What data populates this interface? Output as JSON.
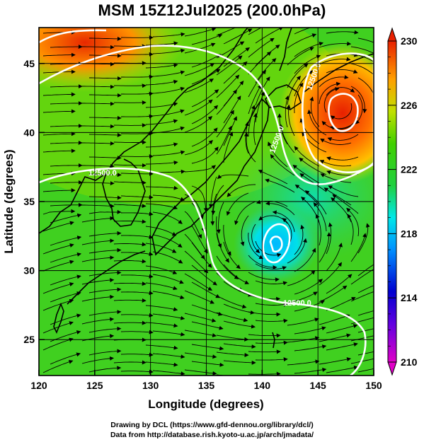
{
  "title": "MSM 15Z12Jul2025 (200.0hPa)",
  "x_axis": {
    "label": "Longitude (degrees)",
    "ticks": [
      120,
      125,
      130,
      135,
      140,
      145,
      150
    ],
    "range": [
      120,
      150
    ]
  },
  "y_axis": {
    "label": "Latitude  (degrees)",
    "ticks": [
      25,
      30,
      35,
      40,
      45
    ],
    "range": [
      22.4,
      47.6
    ]
  },
  "colorbar": {
    "min": 210,
    "max": 230,
    "tick_labels": [
      "230",
      "226",
      "222",
      "218",
      "214",
      "210"
    ],
    "tick_values": [
      230,
      226,
      222,
      218,
      214,
      210
    ],
    "extend": "both",
    "colors": [
      "#e000c8",
      "#0000c8",
      "#0090ff",
      "#00e8e8",
      "#20d020",
      "#c0e000",
      "#ffa000",
      "#e82000"
    ]
  },
  "contours": {
    "color": "#ffffff",
    "labels": [
      "12500.0",
      "12500.0",
      "12500.0",
      "12500.0"
    ]
  },
  "features": {
    "warm_high_center": {
      "lon": 147,
      "lat": 42,
      "value_approx": 228
    },
    "cold_low_center": {
      "lon": 141,
      "lat": 32.5,
      "value_approx": 217
    }
  },
  "credits": {
    "line1": "Drawing by DCL (https://www.gfd-dennou.org/library/dcl/)",
    "line2": "Data from http://database.rish.kyoto-u.ac.jp/arch/jmadata/"
  }
}
